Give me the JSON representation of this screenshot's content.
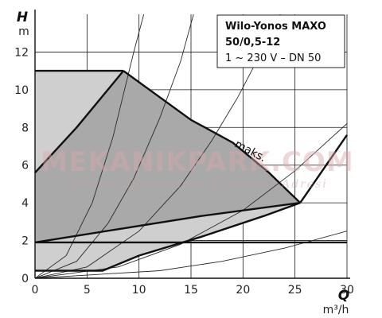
{
  "chart_data": {
    "type": "line",
    "title": "Wilo-Yonos MAXO",
    "subtitle_lines": [
      "50/0,5-12",
      "1 ~ 230 V – DN 50"
    ],
    "y_symbol": "H",
    "y_unit": "m",
    "x_symbol": "Q",
    "x_unit": "m³/h",
    "xlim": [
      0,
      30
    ],
    "ylim": [
      0,
      14
    ],
    "x_ticks": [
      0,
      5,
      10,
      15,
      20,
      25,
      30
    ],
    "y_ticks": [
      0,
      2,
      4,
      6,
      8,
      10,
      12
    ],
    "grid": true,
    "legend_position": "top-right",
    "annotation": "maks.",
    "watermark": "MEKANIKPARK.COM",
    "watermark_sub": "Tesisat Dünyasının Güvenilir Adresi",
    "areas": [
      {
        "name": "",
        "fill": "#cfcfcf",
        "points": [
          [
            0,
            11
          ],
          [
            8.5,
            11
          ],
          [
            7,
            10
          ],
          [
            4,
            8
          ],
          [
            0,
            5.6
          ]
        ]
      },
      {
        "name": "",
        "fill": "#cfcfcf",
        "points": [
          [
            0,
            0.4
          ],
          [
            6.5,
            0.4
          ],
          [
            10,
            1.2
          ],
          [
            16,
            2.2
          ],
          [
            22,
            3.3
          ],
          [
            25.5,
            4
          ],
          [
            16,
            3.3
          ],
          [
            8,
            2.6
          ],
          [
            0,
            1.9
          ]
        ]
      },
      {
        "name": "",
        "fill": "#a9a9a9",
        "points": [
          [
            0,
            5.6
          ],
          [
            4,
            8
          ],
          [
            7,
            10
          ],
          [
            8.5,
            11
          ],
          [
            12,
            9.6
          ],
          [
            15,
            8.4
          ],
          [
            19,
            7.2
          ],
          [
            22.5,
            5.6
          ],
          [
            25.5,
            4
          ],
          [
            16,
            3.3
          ],
          [
            8,
            2.6
          ],
          [
            0,
            1.9
          ]
        ]
      }
    ],
    "series": [
      {
        "name": "",
        "values": [
          [
            0,
            11
          ],
          [
            8.5,
            11
          ]
        ]
      },
      {
        "name": "",
        "values": [
          [
            0,
            5.6
          ],
          [
            4,
            8
          ],
          [
            7,
            10
          ],
          [
            8.5,
            11
          ]
        ]
      },
      {
        "name": "",
        "values": [
          [
            8.5,
            11
          ],
          [
            12,
            9.6
          ],
          [
            15,
            8.4
          ],
          [
            19,
            7.2
          ],
          [
            22.5,
            5.6
          ],
          [
            25.5,
            4
          ]
        ]
      },
      {
        "name": "",
        "values": [
          [
            0,
            1.9
          ],
          [
            8,
            2.6
          ],
          [
            16,
            3.3
          ],
          [
            25.5,
            4
          ]
        ]
      },
      {
        "name": "",
        "values": [
          [
            0,
            0.4
          ],
          [
            6.5,
            0.4
          ],
          [
            10,
            1.2
          ],
          [
            16,
            2.2
          ],
          [
            22,
            3.3
          ],
          [
            25.5,
            4
          ]
        ]
      },
      {
        "name": "",
        "values": [
          [
            25.5,
            4
          ],
          [
            30,
            7.6
          ]
        ]
      },
      {
        "name": "",
        "values": [
          [
            0,
            1.9
          ],
          [
            30,
            1.9
          ]
        ]
      }
    ],
    "system_curves": [
      {
        "values": [
          [
            0,
            0
          ],
          [
            3,
            1.2
          ],
          [
            5.5,
            4
          ],
          [
            7.5,
            7.5
          ],
          [
            9.5,
            12
          ],
          [
            10.7,
            14.5
          ]
        ]
      },
      {
        "values": [
          [
            0,
            0
          ],
          [
            4,
            0.9
          ],
          [
            7,
            2.9
          ],
          [
            9.5,
            5.3
          ],
          [
            12,
            8.5
          ],
          [
            14,
            11.5
          ],
          [
            15.5,
            14.5
          ]
        ]
      },
      {
        "values": [
          [
            0,
            0
          ],
          [
            5,
            0.6
          ],
          [
            10,
            2.5
          ],
          [
            14,
            4.9
          ],
          [
            17,
            7.3
          ],
          [
            19.5,
            9.6
          ],
          [
            23,
            13.3
          ],
          [
            24,
            14.5
          ]
        ]
      },
      {
        "values": [
          [
            0,
            0
          ],
          [
            8,
            0.6
          ],
          [
            14,
            1.8
          ],
          [
            20,
            3.6
          ],
          [
            25,
            5.7
          ],
          [
            30,
            8.2
          ]
        ]
      },
      {
        "values": [
          [
            0,
            0
          ],
          [
            12,
            0.4
          ],
          [
            18,
            0.9
          ],
          [
            24,
            1.6
          ],
          [
            30,
            2.5
          ]
        ]
      }
    ]
  }
}
